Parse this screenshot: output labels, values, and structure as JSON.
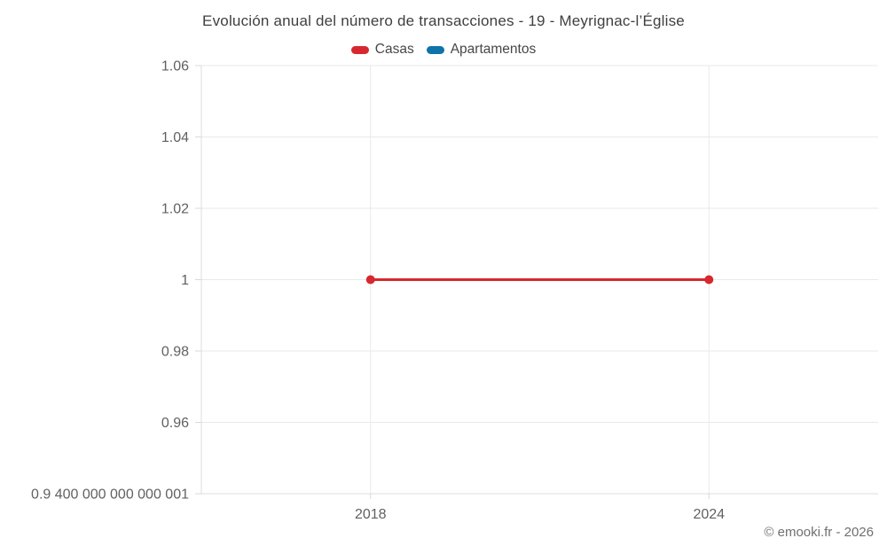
{
  "header": {
    "title": "Evolución anual del número de transacciones - 19 - Meyrignac-l’Église"
  },
  "footer": {
    "attribution": "© emooki.fr - 2026"
  },
  "style": {
    "grid_color": "#e9e9e9",
    "axis_line_color": "#dcdcdc",
    "tick_color": "#d9d9d9",
    "tick_label_color": "#616161",
    "title_color": "#3f3f3f",
    "legend_text_color": "#474747",
    "attribution_color": "#6f6f6f",
    "background_color": "#ffffff"
  },
  "chart_data": {
    "type": "line",
    "title": "Evolución anual del número de transacciones - 19 - Meyrignac-l’Église",
    "xlabel": "",
    "ylabel": "",
    "x": [
      2018,
      2024
    ],
    "series": [
      {
        "name": "Casas",
        "color": "#d7282f",
        "values": [
          1,
          1
        ]
      },
      {
        "name": "Apartamentos",
        "color": "#0f74a8",
        "values": []
      }
    ],
    "x_ticks": [
      {
        "value": 2018,
        "label": "2018"
      },
      {
        "value": 2024,
        "label": "2024"
      }
    ],
    "y_ticks": [
      {
        "value": 1.06,
        "label": "1.06"
      },
      {
        "value": 1.04,
        "label": "1.04"
      },
      {
        "value": 1.02,
        "label": "1.02"
      },
      {
        "value": 1.0,
        "label": "1"
      },
      {
        "value": 0.98,
        "label": "0.98"
      },
      {
        "value": 0.96,
        "label": "0.96"
      },
      {
        "value": 0.9400000000000001,
        "label": "0.9 400 000 000 000 001"
      }
    ],
    "xlim": [
      2015,
      2027
    ],
    "ylim": [
      0.9400000000000001,
      1.06
    ],
    "grid": true,
    "legend_position": "top",
    "marker": "circle",
    "marker_radius": 5,
    "line_width": 3
  }
}
